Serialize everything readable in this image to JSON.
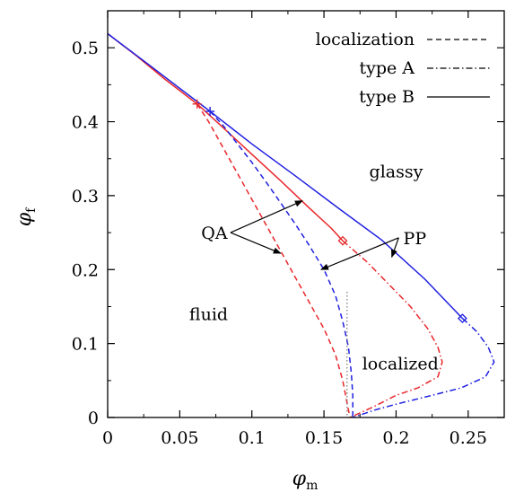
{
  "chart_data": {
    "type": "line",
    "title": "",
    "xlabel": "φ",
    "xlabel_sub": "m",
    "ylabel": "φ",
    "ylabel_sub": "f",
    "xlim": [
      0,
      0.275
    ],
    "ylim": [
      0,
      0.55
    ],
    "x_ticks": [
      0,
      0.05,
      0.1,
      0.15,
      0.2,
      0.25
    ],
    "x_tick_labels": [
      "0",
      "0.05",
      "0.1",
      "0.15",
      "0.2",
      "0.25"
    ],
    "y_ticks": [
      0,
      0.1,
      0.2,
      0.3,
      0.4,
      0.5
    ],
    "y_tick_labels": [
      "0",
      "0.1",
      "0.2",
      "0.3",
      "0.4",
      "0.5"
    ],
    "grid": false,
    "legend": {
      "position": "top-right",
      "entries": [
        {
          "label": "localization",
          "dash": "dashed"
        },
        {
          "label": "type A",
          "dash": "dashdot"
        },
        {
          "label": "type B",
          "dash": "solid"
        }
      ]
    },
    "colors": {
      "QA": "#e8262a",
      "PP": "#1f1fe0",
      "localization_line": "#777777"
    },
    "series": [
      {
        "model": "QA",
        "curve": "type B",
        "color": "#e8262a",
        "dash": "solid",
        "points": [
          [
            0.0,
            0.519
          ],
          [
            0.02,
            0.489
          ],
          [
            0.04,
            0.457
          ],
          [
            0.062,
            0.424
          ],
          [
            0.08,
            0.392
          ],
          [
            0.1,
            0.356
          ],
          [
            0.12,
            0.32
          ],
          [
            0.14,
            0.283
          ],
          [
            0.155,
            0.256
          ],
          [
            0.163,
            0.239
          ]
        ]
      },
      {
        "model": "QA",
        "curve": "type A",
        "color": "#e8262a",
        "dash": "dashdot",
        "points": [
          [
            0.163,
            0.239
          ],
          [
            0.18,
            0.21
          ],
          [
            0.195,
            0.18
          ],
          [
            0.21,
            0.15
          ],
          [
            0.222,
            0.12
          ],
          [
            0.229,
            0.095
          ],
          [
            0.232,
            0.075
          ],
          [
            0.229,
            0.055
          ],
          [
            0.215,
            0.04
          ],
          [
            0.2,
            0.03
          ],
          [
            0.185,
            0.015
          ],
          [
            0.168,
            0.0
          ]
        ]
      },
      {
        "model": "QA",
        "curve": "localization",
        "color": "#e8262a",
        "dash": "dashed",
        "points": [
          [
            0.062,
            0.424
          ],
          [
            0.07,
            0.4
          ],
          [
            0.08,
            0.365
          ],
          [
            0.09,
            0.33
          ],
          [
            0.1,
            0.295
          ],
          [
            0.11,
            0.26
          ],
          [
            0.12,
            0.225
          ],
          [
            0.13,
            0.19
          ],
          [
            0.14,
            0.155
          ],
          [
            0.15,
            0.12
          ],
          [
            0.158,
            0.085
          ],
          [
            0.163,
            0.05
          ],
          [
            0.166,
            0.02
          ],
          [
            0.168,
            0.0
          ]
        ]
      },
      {
        "model": "PP",
        "curve": "type B",
        "color": "#1f1fe0",
        "dash": "solid",
        "points": [
          [
            0.0,
            0.519
          ],
          [
            0.03,
            0.475
          ],
          [
            0.05,
            0.445
          ],
          [
            0.071,
            0.414
          ],
          [
            0.1,
            0.37
          ],
          [
            0.13,
            0.327
          ],
          [
            0.16,
            0.283
          ],
          [
            0.19,
            0.24
          ],
          [
            0.22,
            0.187
          ],
          [
            0.246,
            0.134
          ]
        ]
      },
      {
        "model": "PP",
        "curve": "type A",
        "color": "#1f1fe0",
        "dash": "dashdot",
        "points": [
          [
            0.246,
            0.134
          ],
          [
            0.256,
            0.116
          ],
          [
            0.264,
            0.095
          ],
          [
            0.268,
            0.075
          ],
          [
            0.262,
            0.055
          ],
          [
            0.245,
            0.04
          ],
          [
            0.225,
            0.03
          ],
          [
            0.2,
            0.018
          ],
          [
            0.185,
            0.01
          ],
          [
            0.17,
            0.0
          ]
        ]
      },
      {
        "model": "PP",
        "curve": "localization",
        "color": "#1f1fe0",
        "dash": "dashed",
        "points": [
          [
            0.071,
            0.414
          ],
          [
            0.08,
            0.395
          ],
          [
            0.09,
            0.37
          ],
          [
            0.1,
            0.345
          ],
          [
            0.11,
            0.318
          ],
          [
            0.12,
            0.29
          ],
          [
            0.13,
            0.262
          ],
          [
            0.14,
            0.232
          ],
          [
            0.15,
            0.2
          ],
          [
            0.158,
            0.165
          ],
          [
            0.163,
            0.13
          ],
          [
            0.167,
            0.095
          ],
          [
            0.169,
            0.06
          ],
          [
            0.17,
            0.03
          ],
          [
            0.17,
            0.0
          ]
        ]
      },
      {
        "model": "",
        "curve": "localization",
        "color": "#777777",
        "dash": "dotted",
        "points": [
          [
            0.166,
            0.17
          ],
          [
            0.166,
            0.0
          ]
        ]
      }
    ],
    "markers": [
      {
        "model": "QA",
        "shape": "plus",
        "x": 0.062,
        "y": 0.424,
        "color": "#e8262a"
      },
      {
        "model": "PP",
        "shape": "plus",
        "x": 0.071,
        "y": 0.414,
        "color": "#1f1fe0"
      },
      {
        "model": "QA",
        "shape": "diamond",
        "x": 0.163,
        "y": 0.239,
        "color": "#e8262a"
      },
      {
        "model": "PP",
        "shape": "diamond",
        "x": 0.246,
        "y": 0.134,
        "color": "#1f1fe0"
      }
    ],
    "region_labels": [
      {
        "text": "glassy",
        "x": 0.2,
        "y": 0.325
      },
      {
        "text": "fluid",
        "x": 0.07,
        "y": 0.132
      },
      {
        "text": "localized",
        "x": 0.203,
        "y": 0.065
      }
    ],
    "annotations": [
      {
        "text": "QA",
        "x": 0.074,
        "y": 0.25,
        "arrows_to": [
          [
            0.135,
            0.293
          ],
          [
            0.12,
            0.222
          ]
        ]
      },
      {
        "text": "PP",
        "x": 0.213,
        "y": 0.243,
        "arrows_to": [
          [
            0.148,
            0.2
          ],
          [
            0.197,
            0.217
          ]
        ]
      }
    ]
  }
}
